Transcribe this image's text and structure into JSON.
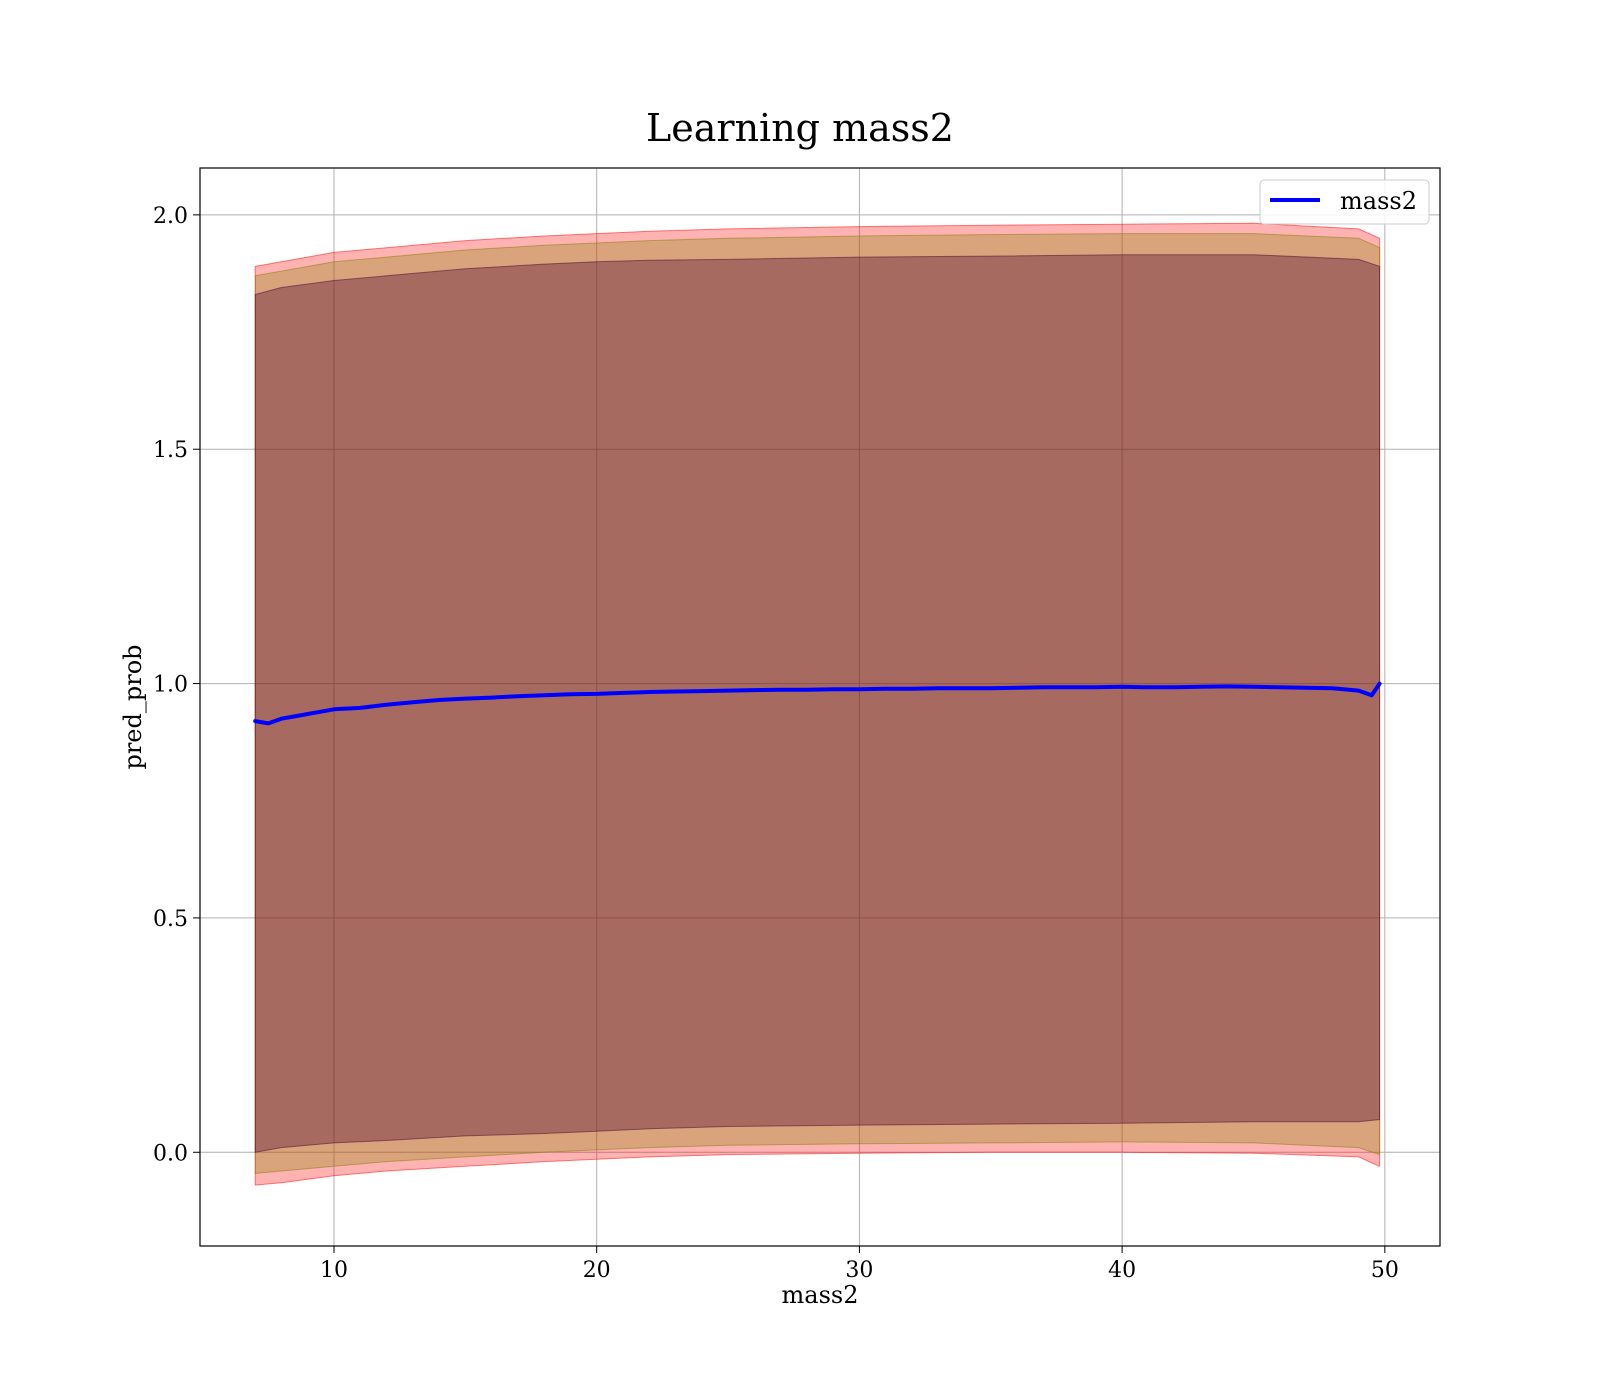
{
  "chart_data": {
    "type": "line",
    "title": "Learning mass2",
    "xlabel": "mass2",
    "ylabel": "pred_prob",
    "xlim": [
      4.9,
      52.1
    ],
    "ylim": [
      -0.2,
      2.1
    ],
    "xticks": [
      10,
      20,
      30,
      40,
      50
    ],
    "xtick_labels": [
      "10",
      "20",
      "30",
      "40",
      "50"
    ],
    "yticks": [
      0.0,
      0.5,
      1.0,
      1.5,
      2.0
    ],
    "ytick_labels": [
      "0.0",
      "0.5",
      "1.0",
      "1.5",
      "2.0"
    ],
    "grid": true,
    "legend": {
      "position": "top-right",
      "entries": [
        "mass2"
      ]
    },
    "series": [
      {
        "name": "mass2",
        "color": "#0000ff",
        "x": [
          7.0,
          7.5,
          8.0,
          8.5,
          9.0,
          9.5,
          10.0,
          11.0,
          12.0,
          13.0,
          14.0,
          15.0,
          16.0,
          17.0,
          18.0,
          19.0,
          20.0,
          21.0,
          22.0,
          23.0,
          24.0,
          25.0,
          26.0,
          27.0,
          28.0,
          29.0,
          30.0,
          31.0,
          32.0,
          33.0,
          34.0,
          35.0,
          36.0,
          37.0,
          38.0,
          39.0,
          40.0,
          41.0,
          42.0,
          43.0,
          44.0,
          45.0,
          46.0,
          47.0,
          48.0,
          49.0,
          49.5,
          49.8
        ],
        "y": [
          0.92,
          0.915,
          0.925,
          0.93,
          0.935,
          0.94,
          0.945,
          0.948,
          0.955,
          0.96,
          0.965,
          0.968,
          0.97,
          0.973,
          0.975,
          0.977,
          0.978,
          0.98,
          0.982,
          0.983,
          0.984,
          0.985,
          0.986,
          0.987,
          0.987,
          0.988,
          0.988,
          0.989,
          0.989,
          0.99,
          0.99,
          0.99,
          0.991,
          0.992,
          0.992,
          0.992,
          0.993,
          0.992,
          0.992,
          0.993,
          0.994,
          0.993,
          0.992,
          0.991,
          0.99,
          0.985,
          0.975,
          1.0
        ]
      }
    ],
    "bands": [
      {
        "color": "#ff0000",
        "opacity": 0.3,
        "x": [
          7.0,
          8.0,
          10.0,
          12.0,
          15.0,
          18.0,
          20.0,
          22.0,
          25.0,
          30.0,
          35.0,
          40.0,
          45.0,
          49.0,
          49.8
        ],
        "upper": [
          1.89,
          1.9,
          1.92,
          1.93,
          1.945,
          1.955,
          1.96,
          1.965,
          1.97,
          1.975,
          1.978,
          1.98,
          1.982,
          1.97,
          1.95
        ],
        "lower": [
          -0.07,
          -0.065,
          -0.05,
          -0.04,
          -0.03,
          -0.02,
          -0.015,
          -0.01,
          -0.005,
          -0.002,
          0.0,
          0.0,
          -0.002,
          -0.01,
          -0.03
        ]
      },
      {
        "color": "#808000",
        "opacity": 0.3,
        "x": [
          7.0,
          8.0,
          10.0,
          12.0,
          15.0,
          18.0,
          20.0,
          22.0,
          25.0,
          30.0,
          35.0,
          40.0,
          45.0,
          49.0,
          49.8
        ],
        "upper": [
          1.87,
          1.88,
          1.9,
          1.91,
          1.925,
          1.935,
          1.94,
          1.945,
          1.95,
          1.955,
          1.958,
          1.96,
          1.96,
          1.95,
          1.93
        ],
        "lower": [
          -0.045,
          -0.04,
          -0.03,
          -0.02,
          -0.01,
          0.0,
          0.005,
          0.01,
          0.015,
          0.018,
          0.02,
          0.022,
          0.02,
          0.01,
          -0.005
        ]
      },
      {
        "color": "#4b0030",
        "opacity": 0.35,
        "x": [
          7.0,
          8.0,
          10.0,
          12.0,
          15.0,
          18.0,
          20.0,
          22.0,
          25.0,
          30.0,
          35.0,
          40.0,
          45.0,
          49.0,
          49.8
        ],
        "upper": [
          1.83,
          1.845,
          1.86,
          1.87,
          1.885,
          1.895,
          1.9,
          1.903,
          1.905,
          1.91,
          1.912,
          1.915,
          1.915,
          1.905,
          1.89
        ],
        "lower": [
          0.0,
          0.01,
          0.02,
          0.025,
          0.035,
          0.04,
          0.045,
          0.05,
          0.055,
          0.058,
          0.06,
          0.062,
          0.065,
          0.065,
          0.07
        ]
      }
    ]
  }
}
